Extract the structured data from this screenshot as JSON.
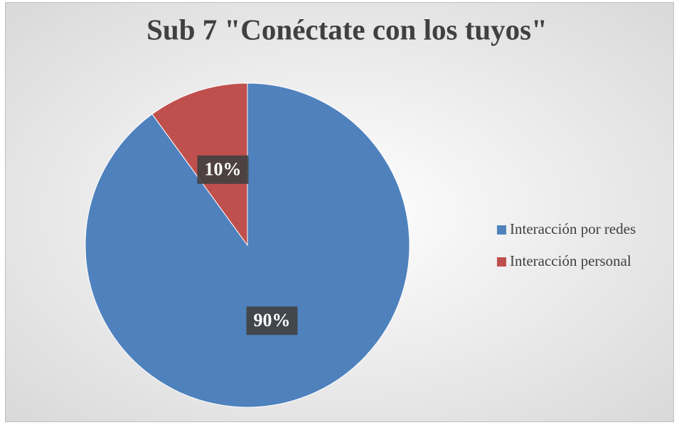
{
  "chart_data": {
    "type": "pie",
    "title": "Sub 7 \"Conéctate con los tuyos\"",
    "categories": [
      "Interacción por redes",
      "Interacción personal"
    ],
    "values": [
      90,
      10
    ],
    "value_labels": [
      "90%",
      "10%"
    ],
    "colors": [
      "#4f81bd",
      "#c0504d"
    ],
    "legend": "right"
  }
}
